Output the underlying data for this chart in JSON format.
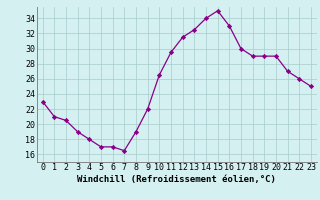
{
  "x": [
    0,
    1,
    2,
    3,
    4,
    5,
    6,
    7,
    8,
    9,
    10,
    11,
    12,
    13,
    14,
    15,
    16,
    17,
    18,
    19,
    20,
    21,
    22,
    23
  ],
  "y": [
    23.0,
    21.0,
    20.5,
    19.0,
    18.0,
    17.0,
    17.0,
    16.5,
    19.0,
    22.0,
    26.5,
    29.5,
    31.5,
    32.5,
    34.0,
    35.0,
    33.0,
    30.0,
    29.0,
    29.0,
    29.0,
    27.0,
    26.0,
    25.0
  ],
  "line_color": "#880088",
  "marker": "D",
  "marker_size": 2.2,
  "marker_edge_width": 0.5,
  "bg_color": "#d5f0f0",
  "grid_color": "#a8cccc",
  "ylabel_ticks": [
    16,
    18,
    20,
    22,
    24,
    26,
    28,
    30,
    32,
    34
  ],
  "xlabel": "Windchill (Refroidissement éolien,°C)",
  "xlabel_fontsize": 6.5,
  "tick_fontsize": 6.0,
  "ylim": [
    15.0,
    35.5
  ],
  "xlim": [
    -0.5,
    23.5
  ]
}
